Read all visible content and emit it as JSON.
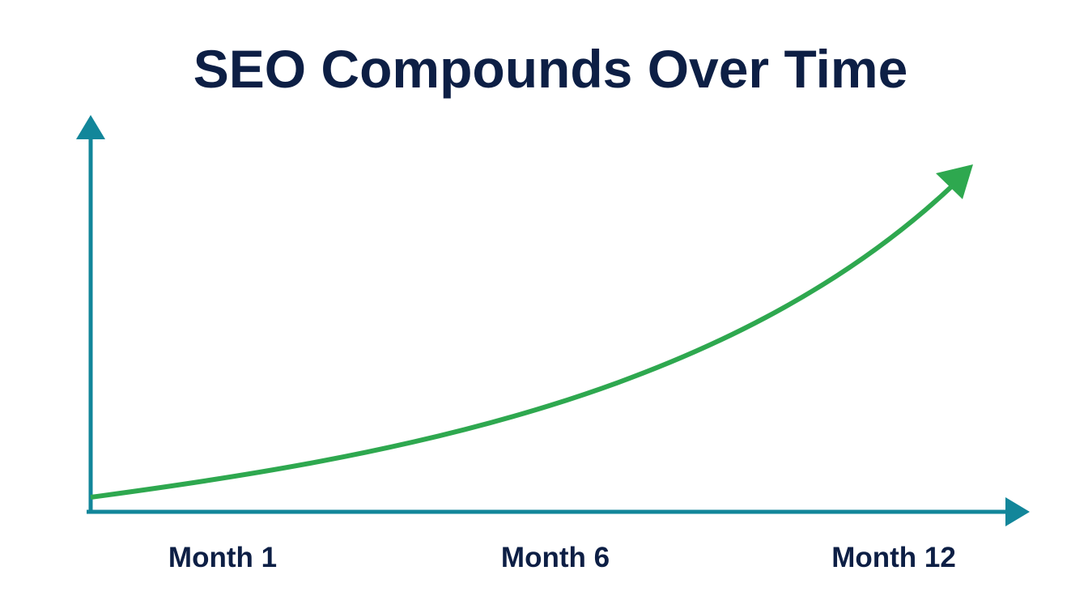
{
  "title": "SEO Compounds Over Time",
  "labels": [
    "Month 1",
    "Month 6",
    "Month 12"
  ]
}
